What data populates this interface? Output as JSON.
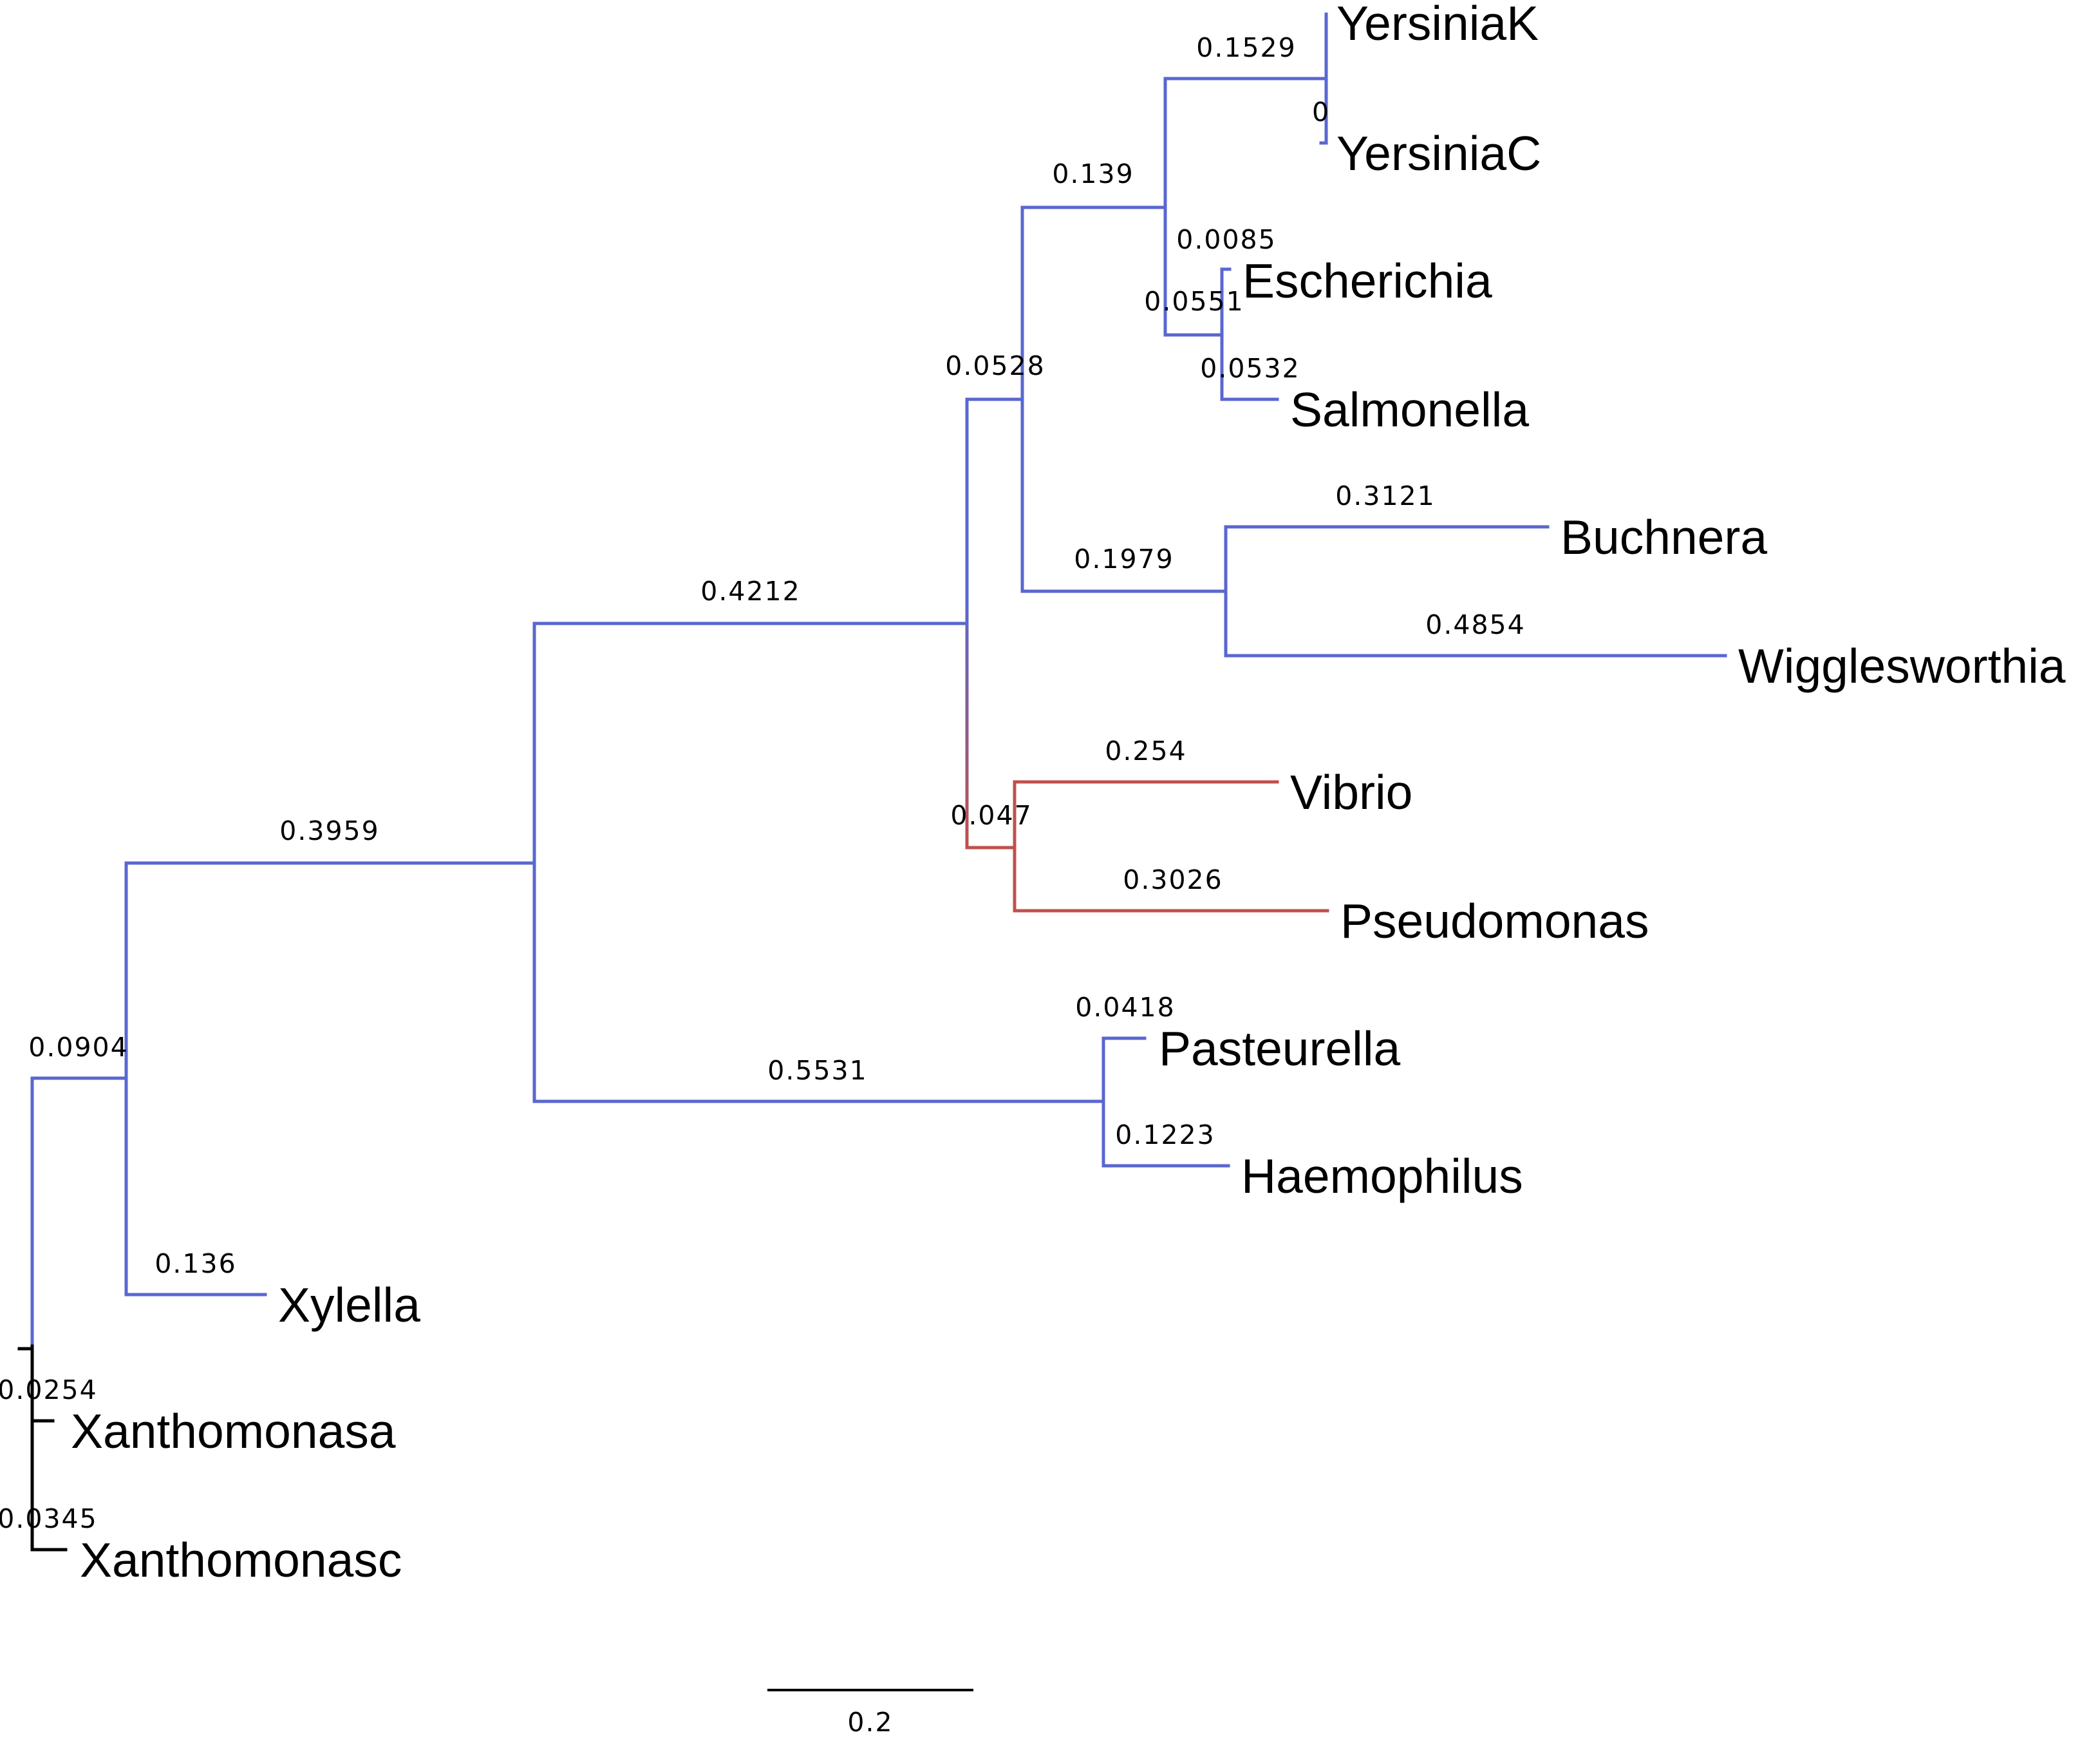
{
  "colors": {
    "blue": "#5a67d0",
    "red": "#c0504d",
    "outgroup": "#000000",
    "text": "#000000",
    "background": "#ffffff"
  },
  "taxa": [
    {
      "id": "yersiniak",
      "label": "YersiniaK",
      "branch_length": "0.1529",
      "color": "blue"
    },
    {
      "id": "yersiniac",
      "label": "YersiniaC",
      "branch_length": "0",
      "color": "blue"
    },
    {
      "id": "escherichia",
      "label": "Escherichia",
      "branch_length": "0.0085",
      "color": "blue"
    },
    {
      "id": "salmonella",
      "label": "Salmonella",
      "branch_length": "0.0532",
      "color": "blue"
    },
    {
      "id": "buchnera",
      "label": "Buchnera",
      "branch_length": "0.3121",
      "color": "blue"
    },
    {
      "id": "wigglesworthia",
      "label": "Wigglesworthia",
      "branch_length": "0.4854",
      "color": "blue"
    },
    {
      "id": "vibrio",
      "label": "Vibrio",
      "branch_length": "0.254",
      "color": "red"
    },
    {
      "id": "pseudomonas",
      "label": "Pseudomonas",
      "branch_length": "0.3026",
      "color": "red"
    },
    {
      "id": "pasteurella",
      "label": "Pasteurella",
      "branch_length": "0.0418",
      "color": "blue"
    },
    {
      "id": "haemophilus",
      "label": "Haemophilus",
      "branch_length": "0.1223",
      "color": "blue"
    },
    {
      "id": "xylella",
      "label": "Xylella",
      "branch_length": "0.136",
      "color": "blue"
    },
    {
      "id": "xanthomonasa",
      "label": "Xanthomonasa",
      "branch_length": "0.0254",
      "color": "outgroup"
    },
    {
      "id": "xanthomonasc",
      "label": "Xanthomonasc",
      "branch_length": "0.0345",
      "color": "outgroup"
    }
  ],
  "internal_branches": [
    {
      "id": "escherichia-salmonella-clade",
      "branch_length": "0.0551"
    },
    {
      "id": "enteric-core-clade",
      "branch_length": "0.139"
    },
    {
      "id": "enteric-clade",
      "branch_length": "0.0528"
    },
    {
      "id": "buchnera-wigglesworthia-clade",
      "branch_length": "0.1979"
    },
    {
      "id": "vibrio-pseudomonas-clade",
      "branch_length": "0.047"
    },
    {
      "id": "enteric-vibrio-clade",
      "branch_length": "0.4212"
    },
    {
      "id": "pasteurella-haemophilus-clade",
      "branch_length": "0.5531"
    },
    {
      "id": "gamma-core-clade",
      "branch_length": "0.3959"
    },
    {
      "id": "ingroup-clade",
      "branch_length": "0.0904"
    }
  ],
  "scale_bar": {
    "label": "0.2",
    "length": 0.2
  }
}
